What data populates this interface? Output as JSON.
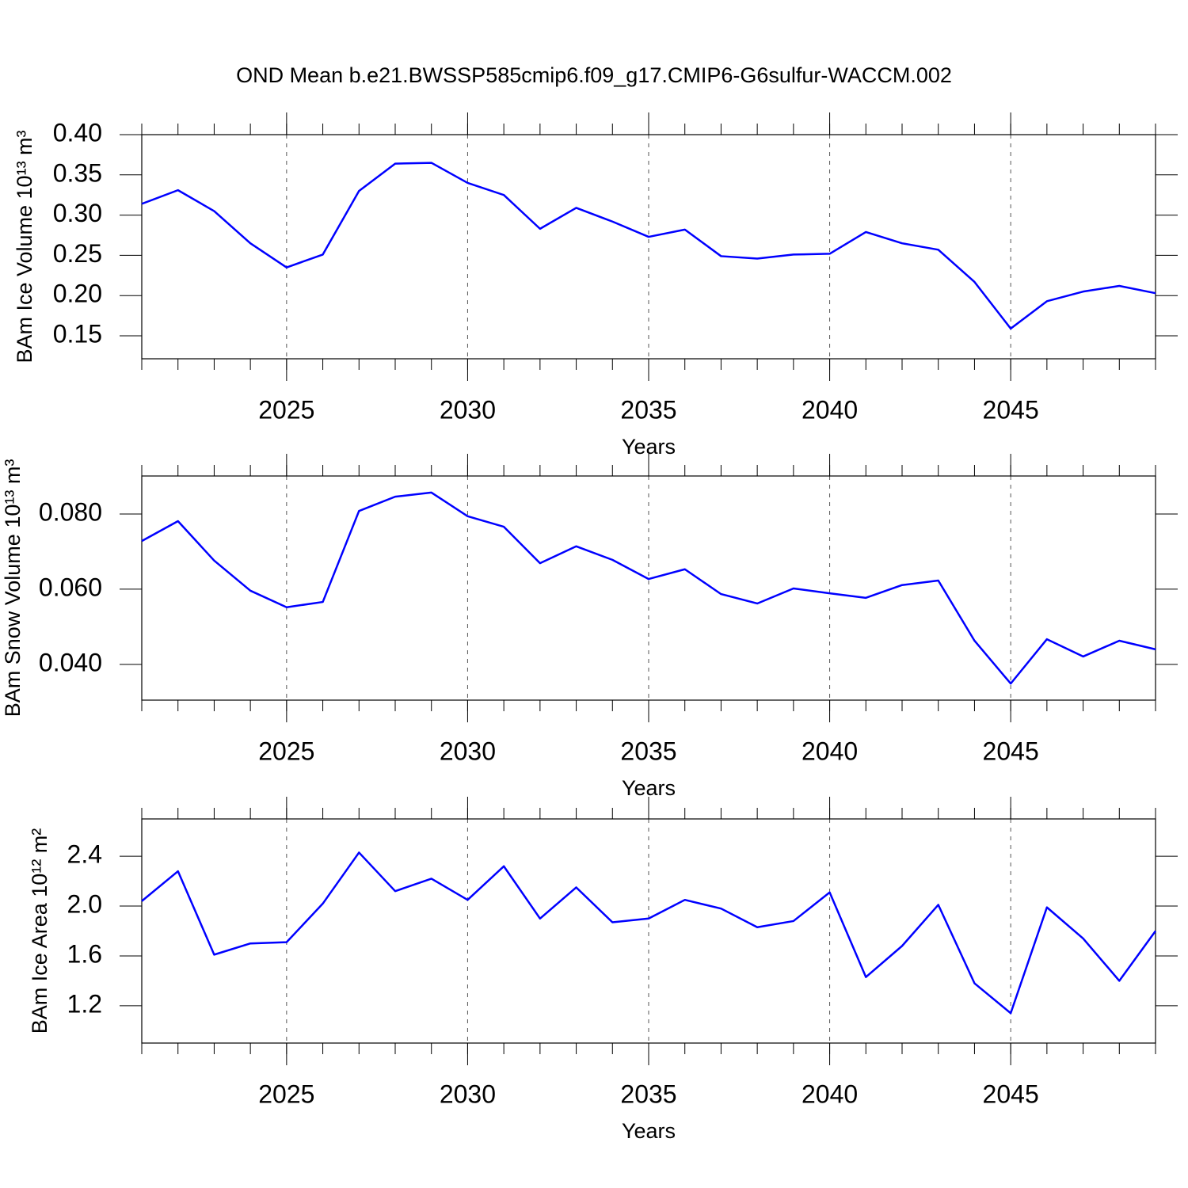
{
  "title": "OND Mean b.e21.BWSSP585cmip6.f09_g17.CMIP6-G6sulfur-WACCM.002",
  "chart_data": [
    {
      "type": "line",
      "x_label": "Years",
      "y_label": "BAm Ice Volume 10¹³ m³",
      "color": "#0000ff",
      "xgrid": true,
      "x": [
        2021,
        2022,
        2023,
        2024,
        2025,
        2026,
        2027,
        2028,
        2029,
        2030,
        2031,
        2032,
        2033,
        2034,
        2035,
        2036,
        2037,
        2038,
        2039,
        2040,
        2041,
        2042,
        2043,
        2044,
        2045,
        2046,
        2047,
        2048,
        2049
      ],
      "values": [
        0.314,
        0.331,
        0.305,
        0.265,
        0.235,
        0.251,
        0.33,
        0.364,
        0.365,
        0.34,
        0.325,
        0.283,
        0.309,
        0.292,
        0.273,
        0.282,
        0.249,
        0.246,
        0.251,
        0.252,
        0.279,
        0.265,
        0.257,
        0.217,
        0.159,
        0.193,
        0.205,
        0.212,
        0.203
      ],
      "xlim": [
        2021,
        2049
      ],
      "xticks": [
        2025,
        2030,
        2035,
        2040,
        2045
      ],
      "ylim": [
        0.1215,
        0.4
      ],
      "yticks": [
        {
          "value": 0.4,
          "label": "0.40"
        },
        0.35,
        {
          "value": 0.3,
          "label": "0.30"
        },
        0.25,
        {
          "value": 0.2,
          "label": "0.20"
        },
        0.15
      ]
    },
    {
      "type": "line",
      "x_label": "Years",
      "y_label": "BAm Snow Volume 10¹³ m³",
      "color": "#0000ff",
      "xgrid": true,
      "x": [
        2021,
        2022,
        2023,
        2024,
        2025,
        2026,
        2027,
        2028,
        2029,
        2030,
        2031,
        2032,
        2033,
        2034,
        2035,
        2036,
        2037,
        2038,
        2039,
        2040,
        2041,
        2042,
        2043,
        2044,
        2045,
        2046,
        2047,
        2048,
        2049
      ],
      "values": [
        0.0728,
        0.0781,
        0.0676,
        0.0596,
        0.0552,
        0.0566,
        0.0808,
        0.0846,
        0.0857,
        0.0794,
        0.0766,
        0.0669,
        0.0714,
        0.0678,
        0.0627,
        0.0653,
        0.0587,
        0.0562,
        0.0602,
        0.0589,
        0.0577,
        0.0611,
        0.0623,
        0.0463,
        0.0349,
        0.0467,
        0.0421,
        0.0463,
        0.044
      ],
      "xlim": [
        2021,
        2049
      ],
      "xticks": [
        2025,
        2030,
        2035,
        2040,
        2045
      ],
      "ylim": [
        0.0305,
        0.0901
      ],
      "yticks": [
        {
          "value": 0.08,
          "label": "0.080"
        },
        {
          "value": 0.06,
          "label": "0.060"
        },
        {
          "value": 0.04,
          "label": "0.040"
        }
      ]
    },
    {
      "type": "line",
      "x_label": "Years",
      "y_label": "BAm Ice Area 10¹² m²",
      "color": "#0000ff",
      "xgrid": true,
      "x": [
        2021,
        2022,
        2023,
        2024,
        2025,
        2026,
        2027,
        2028,
        2029,
        2030,
        2031,
        2032,
        2033,
        2034,
        2035,
        2036,
        2037,
        2038,
        2039,
        2040,
        2041,
        2042,
        2043,
        2044,
        2045,
        2046,
        2047,
        2048,
        2049
      ],
      "values": [
        2.04,
        2.28,
        1.61,
        1.7,
        1.71,
        2.02,
        2.43,
        2.12,
        2.22,
        2.05,
        2.32,
        1.9,
        2.15,
        1.87,
        1.9,
        2.05,
        1.98,
        1.83,
        1.88,
        2.11,
        1.43,
        1.68,
        2.01,
        1.38,
        1.14,
        1.99,
        1.74,
        1.4,
        1.8
      ],
      "xlim": [
        2021,
        2049
      ],
      "xticks": [
        2025,
        2030,
        2035,
        2040,
        2045
      ],
      "ylim": [
        0.9,
        2.7
      ],
      "yticks": [
        2.4,
        {
          "value": 2.0,
          "label": "2.0"
        },
        1.6,
        1.2
      ]
    }
  ]
}
